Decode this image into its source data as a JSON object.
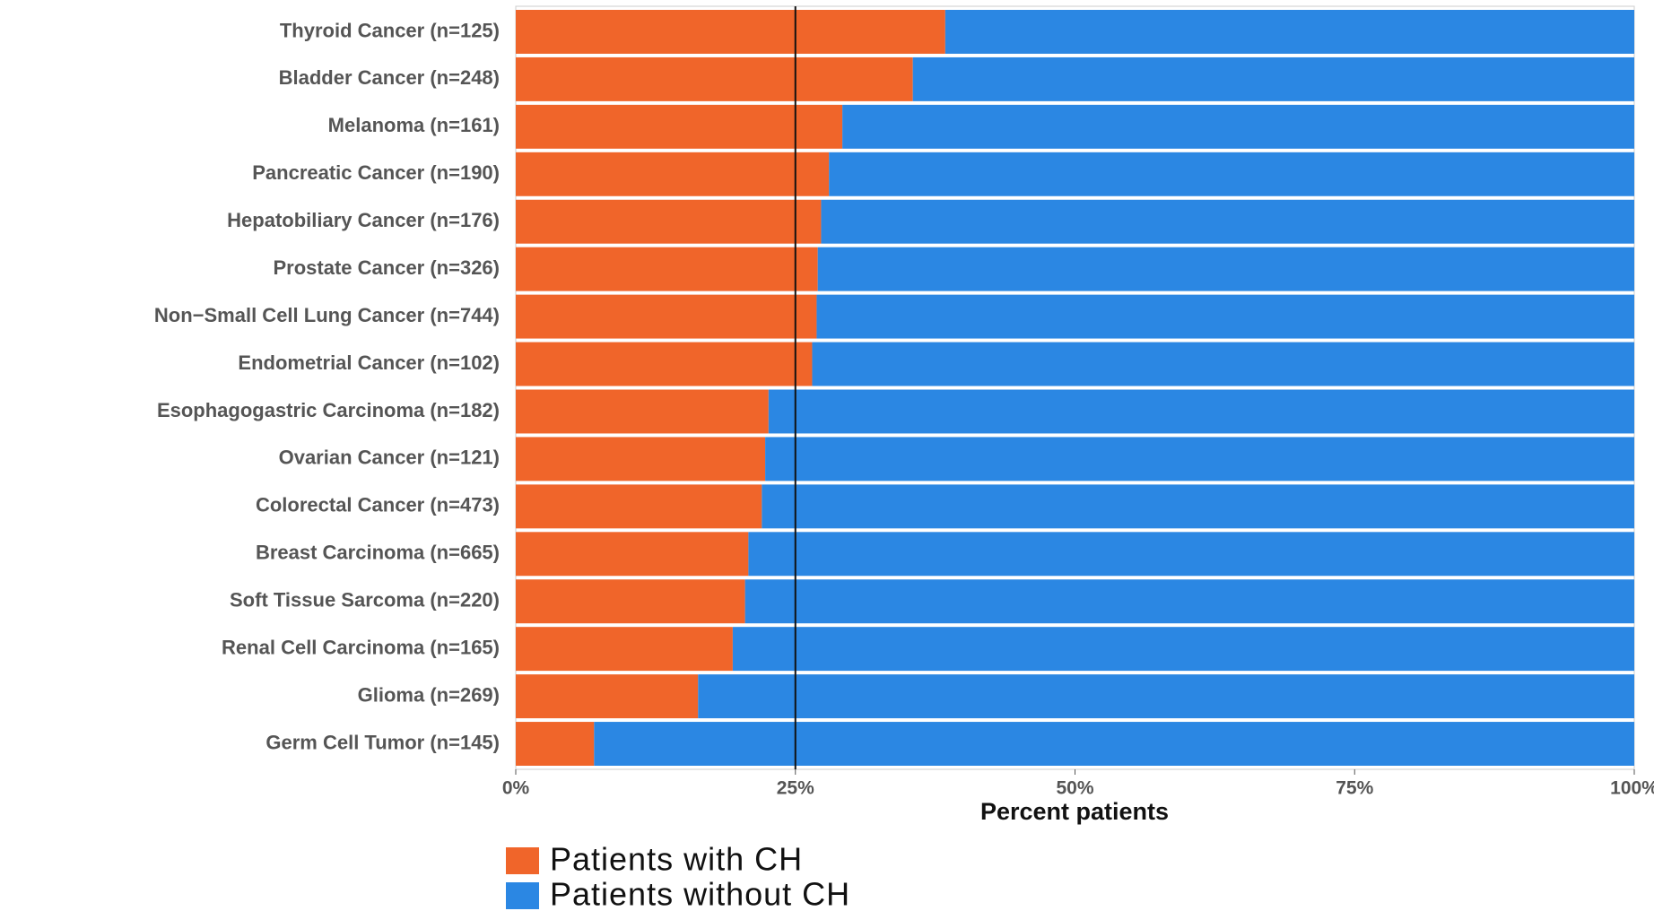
{
  "chart_data": {
    "type": "stacked-bar-horizontal",
    "categories": [
      "Thyroid Cancer (n=125)",
      "Bladder Cancer (n=248)",
      "Melanoma (n=161)",
      "Pancreatic Cancer (n=190)",
      "Hepatobiliary Cancer (n=176)",
      "Prostate Cancer (n=326)",
      "Non−Small Cell Lung Cancer (n=744)",
      "Endometrial Cancer (n=102)",
      "Esophagogastric Carcinoma (n=182)",
      "Ovarian Cancer (n=121)",
      "Colorectal Cancer (n=473)",
      "Breast Carcinoma (n=665)",
      "Soft Tissue Sarcoma (n=220)",
      "Renal Cell Carcinoma (n=165)",
      "Glioma (n=269)",
      "Germ Cell Tumor (n=145)"
    ],
    "series": [
      {
        "name": "Patients with CH",
        "color": "#f0652a",
        "values": [
          38.4,
          35.5,
          29.2,
          28.0,
          27.3,
          27.0,
          26.9,
          26.5,
          22.6,
          22.3,
          22.0,
          20.8,
          20.5,
          19.4,
          16.3,
          7.0
        ]
      },
      {
        "name": "Patients without CH",
        "color": "#2b87e3",
        "values": [
          61.6,
          64.5,
          70.8,
          72.0,
          72.7,
          73.0,
          73.1,
          73.5,
          77.4,
          77.7,
          78.0,
          79.2,
          79.5,
          80.6,
          83.7,
          93.0
        ]
      }
    ],
    "xlabel": "Percent patients",
    "xlim": [
      0,
      100
    ],
    "xticks": [
      {
        "value": 0,
        "label": "0%"
      },
      {
        "value": 25,
        "label": "25%"
      },
      {
        "value": 50,
        "label": "50%"
      },
      {
        "value": 75,
        "label": "75%"
      },
      {
        "value": 100,
        "label": "100%"
      }
    ],
    "reference_line": 25,
    "legend": "bottom"
  }
}
